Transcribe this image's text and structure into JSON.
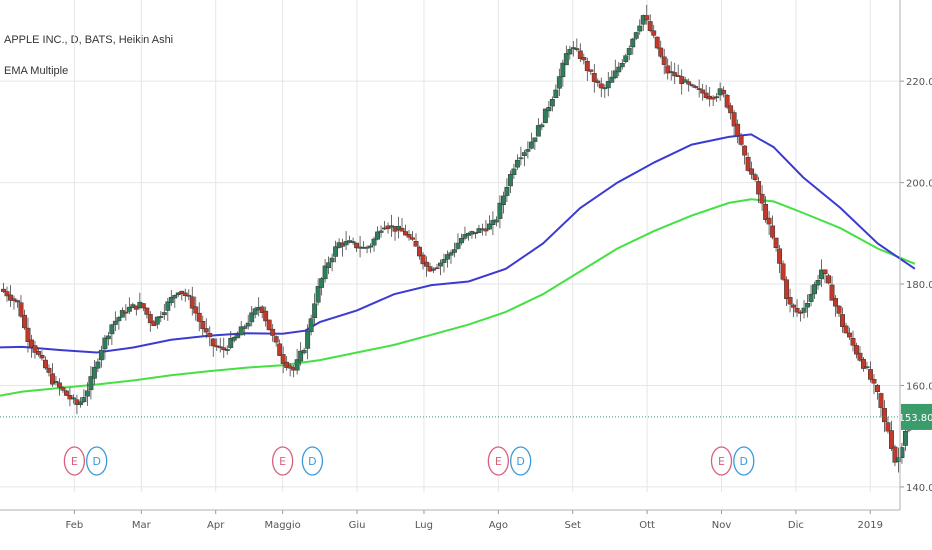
{
  "chart_data": {
    "type": "candlestick",
    "title": "APPLE INC., D, BATS, Heikin Ashi",
    "subtitle": "EMA Multiple",
    "colors": {
      "up": "#2e7d5b",
      "down": "#c0392b",
      "ema_short": "#3b3bd1",
      "ema_long": "#44e044",
      "price_line": "#3a9c6b",
      "event_e": "#d9607a",
      "event_d": "#3a9ad9",
      "grid": "#e6e6e6",
      "axis_text": "#555555"
    },
    "x_ticks": [
      "Feb",
      "Mar",
      "Apr",
      "Maggio",
      "Giu",
      "Lug",
      "Ago",
      "Set",
      "Ott",
      "Nov",
      "Dic",
      "2019"
    ],
    "x_tick_positions": [
      1.2,
      2.1,
      3.1,
      4.0,
      5.0,
      5.9,
      6.9,
      7.9,
      8.9,
      9.9,
      10.9,
      11.9
    ],
    "x_range": [
      0.2,
      12.3
    ],
    "y_ticks": [
      140.0,
      160.0,
      180.0,
      200.0,
      220.0
    ],
    "y_range": [
      139,
      236
    ],
    "last_price": 153.8,
    "last_price_label": "153.80",
    "events": [
      {
        "label": "E",
        "kind": "earnings",
        "x": 1.2
      },
      {
        "label": "D",
        "kind": "dividend",
        "x": 1.5
      },
      {
        "label": "E",
        "kind": "earnings",
        "x": 4.0
      },
      {
        "label": "D",
        "kind": "dividend",
        "x": 4.4
      },
      {
        "label": "E",
        "kind": "earnings",
        "x": 6.9
      },
      {
        "label": "D",
        "kind": "dividend",
        "x": 7.2
      },
      {
        "label": "E",
        "kind": "earnings",
        "x": 9.9
      },
      {
        "label": "D",
        "kind": "dividend",
        "x": 10.2
      }
    ],
    "price_path": [
      [
        0.2,
        179
      ],
      [
        0.3,
        178
      ],
      [
        0.45,
        176
      ],
      [
        0.55,
        170
      ],
      [
        0.75,
        165
      ],
      [
        0.9,
        161
      ],
      [
        1.1,
        158
      ],
      [
        1.25,
        156
      ],
      [
        1.4,
        160
      ],
      [
        1.55,
        167
      ],
      [
        1.7,
        172
      ],
      [
        1.9,
        175
      ],
      [
        2.1,
        176
      ],
      [
        2.25,
        172
      ],
      [
        2.45,
        176
      ],
      [
        2.6,
        179
      ],
      [
        2.75,
        177
      ],
      [
        2.9,
        172
      ],
      [
        3.05,
        168
      ],
      [
        3.2,
        167
      ],
      [
        3.4,
        170
      ],
      [
        3.55,
        173
      ],
      [
        3.7,
        176
      ],
      [
        3.85,
        170
      ],
      [
        4.0,
        165
      ],
      [
        4.15,
        163
      ],
      [
        4.3,
        168
      ],
      [
        4.45,
        178
      ],
      [
        4.6,
        184
      ],
      [
        4.75,
        188
      ],
      [
        4.9,
        188
      ],
      [
        5.1,
        187
      ],
      [
        5.2,
        188
      ],
      [
        5.35,
        192
      ],
      [
        5.5,
        191
      ],
      [
        5.65,
        190
      ],
      [
        5.8,
        187
      ],
      [
        5.95,
        183
      ],
      [
        6.1,
        184
      ],
      [
        6.25,
        186
      ],
      [
        6.4,
        189
      ],
      [
        6.55,
        190
      ],
      [
        6.7,
        191
      ],
      [
        6.85,
        192
      ],
      [
        7.0,
        199
      ],
      [
        7.15,
        205
      ],
      [
        7.3,
        207
      ],
      [
        7.45,
        211
      ],
      [
        7.6,
        216
      ],
      [
        7.75,
        222
      ],
      [
        7.85,
        227
      ],
      [
        8.0,
        225
      ],
      [
        8.15,
        221
      ],
      [
        8.3,
        218
      ],
      [
        8.45,
        221
      ],
      [
        8.6,
        225
      ],
      [
        8.75,
        230
      ],
      [
        8.85,
        233
      ],
      [
        9.0,
        228
      ],
      [
        9.15,
        222
      ],
      [
        9.3,
        221
      ],
      [
        9.45,
        219
      ],
      [
        9.6,
        218
      ],
      [
        9.75,
        217
      ],
      [
        9.9,
        218
      ],
      [
        10.05,
        213
      ],
      [
        10.2,
        205
      ],
      [
        10.35,
        200
      ],
      [
        10.5,
        193
      ],
      [
        10.65,
        186
      ],
      [
        10.8,
        176
      ],
      [
        10.95,
        174
      ],
      [
        11.1,
        178
      ],
      [
        11.25,
        183
      ],
      [
        11.4,
        177
      ],
      [
        11.55,
        171
      ],
      [
        11.7,
        167
      ],
      [
        11.85,
        163
      ],
      [
        12.0,
        158
      ],
      [
        12.1,
        152
      ],
      [
        12.15,
        151
      ],
      [
        12.2,
        147
      ],
      [
        12.25,
        144
      ],
      [
        12.3,
        147
      ],
      [
        12.4,
        153
      ],
      [
        12.5,
        154
      ]
    ],
    "ema_short_path": [
      [
        0.2,
        167.5
      ],
      [
        0.5,
        167.6
      ],
      [
        1.0,
        167.0
      ],
      [
        1.5,
        166.5
      ],
      [
        2.0,
        167.5
      ],
      [
        2.5,
        169.0
      ],
      [
        3.0,
        169.8
      ],
      [
        3.5,
        170.3
      ],
      [
        4.0,
        170.2
      ],
      [
        4.3,
        170.8
      ],
      [
        4.5,
        172.5
      ],
      [
        5.0,
        174.8
      ],
      [
        5.5,
        178.0
      ],
      [
        6.0,
        179.8
      ],
      [
        6.5,
        180.5
      ],
      [
        7.0,
        183.0
      ],
      [
        7.5,
        188.0
      ],
      [
        8.0,
        195.0
      ],
      [
        8.5,
        200.0
      ],
      [
        9.0,
        204.0
      ],
      [
        9.5,
        207.5
      ],
      [
        10.0,
        209.0
      ],
      [
        10.3,
        209.5
      ],
      [
        10.6,
        207.0
      ],
      [
        11.0,
        201.0
      ],
      [
        11.5,
        195.0
      ],
      [
        12.0,
        188.0
      ],
      [
        12.5,
        183.0
      ]
    ],
    "ema_long_path": [
      [
        0.2,
        158.0
      ],
      [
        0.5,
        158.8
      ],
      [
        1.0,
        159.5
      ],
      [
        1.5,
        160.2
      ],
      [
        2.0,
        161.0
      ],
      [
        2.5,
        162.0
      ],
      [
        3.0,
        162.8
      ],
      [
        3.5,
        163.5
      ],
      [
        4.0,
        164.0
      ],
      [
        4.5,
        165.0
      ],
      [
        5.0,
        166.5
      ],
      [
        5.5,
        168.0
      ],
      [
        6.0,
        170.0
      ],
      [
        6.5,
        172.0
      ],
      [
        7.0,
        174.5
      ],
      [
        7.5,
        178.0
      ],
      [
        8.0,
        182.5
      ],
      [
        8.5,
        187.0
      ],
      [
        9.0,
        190.5
      ],
      [
        9.5,
        193.5
      ],
      [
        10.0,
        196.0
      ],
      [
        10.3,
        196.7
      ],
      [
        10.6,
        196.3
      ],
      [
        11.0,
        194.0
      ],
      [
        11.5,
        191.0
      ],
      [
        12.0,
        187.0
      ],
      [
        12.5,
        184.0
      ]
    ]
  }
}
